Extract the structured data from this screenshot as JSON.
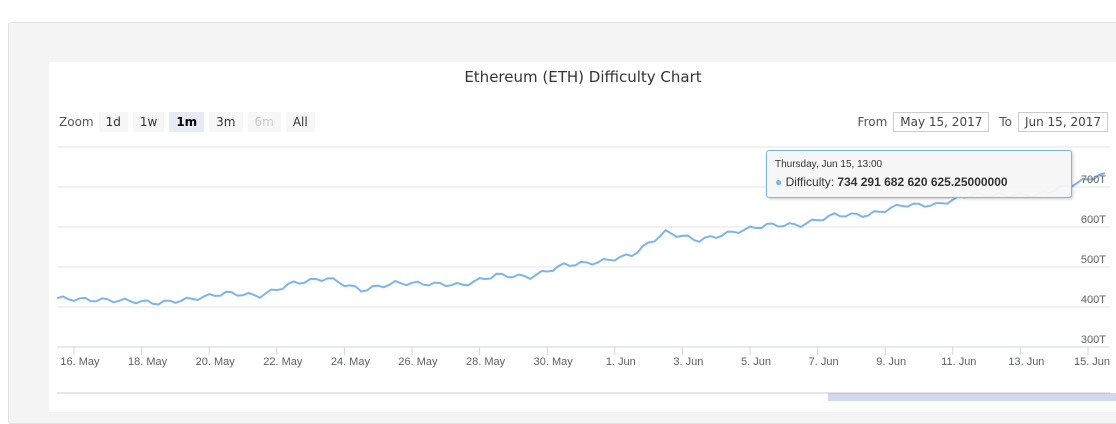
{
  "chart_data": {
    "type": "line",
    "title": "Ethereum (ETH) Difficulty Chart",
    "series": [
      {
        "name": "Difficulty",
        "color": "#7cb5ec"
      }
    ],
    "x": [
      "May 15",
      "May 16",
      "May 17",
      "May 18",
      "May 19",
      "May 20",
      "May 21",
      "May 22",
      "May 23",
      "May 24",
      "May 25",
      "May 26",
      "May 27",
      "May 28",
      "May 29",
      "May 30",
      "May 31",
      "Jun 1",
      "Jun 2",
      "Jun 3",
      "Jun 4",
      "Jun 5",
      "Jun 6",
      "Jun 7",
      "Jun 8",
      "Jun 9",
      "Jun 10",
      "Jun 11",
      "Jun 12",
      "Jun 13",
      "Jun 14",
      "Jun 15"
    ],
    "values_T": [
      422,
      418,
      416,
      410,
      420,
      435,
      428,
      460,
      472,
      442,
      460,
      458,
      455,
      480,
      475,
      505,
      512,
      530,
      587,
      567,
      587,
      605,
      605,
      630,
      630,
      655,
      655,
      680,
      680,
      680,
      705,
      734
    ],
    "ylim_T": [
      300,
      800
    ],
    "yticks": [
      "300T",
      "400T",
      "500T",
      "600T",
      "700T"
    ],
    "yticks_values": [
      300,
      400,
      500,
      600,
      700
    ],
    "xticks": [
      "16. May",
      "18. May",
      "20. May",
      "22. May",
      "24. May",
      "26. May",
      "28. May",
      "30. May",
      "1. Jun",
      "3. Jun",
      "5. Jun",
      "7. Jun",
      "9. Jun",
      "11. Jun",
      "13. Jun",
      "15. Jun"
    ],
    "grid": true,
    "legend": "none"
  },
  "toolbar": {
    "zoom_label": "Zoom",
    "buttons": [
      "1d",
      "1w",
      "1m",
      "3m",
      "6m",
      "All"
    ],
    "from_label": "From",
    "from_value": "May 15, 2017",
    "to_label": "To",
    "to_value": "Jun 15, 2017"
  },
  "tooltip": {
    "date": "Thursday, Jun 15, 13:00",
    "series": "Difficulty:",
    "value": "734 291 682 620 625.25000000"
  }
}
